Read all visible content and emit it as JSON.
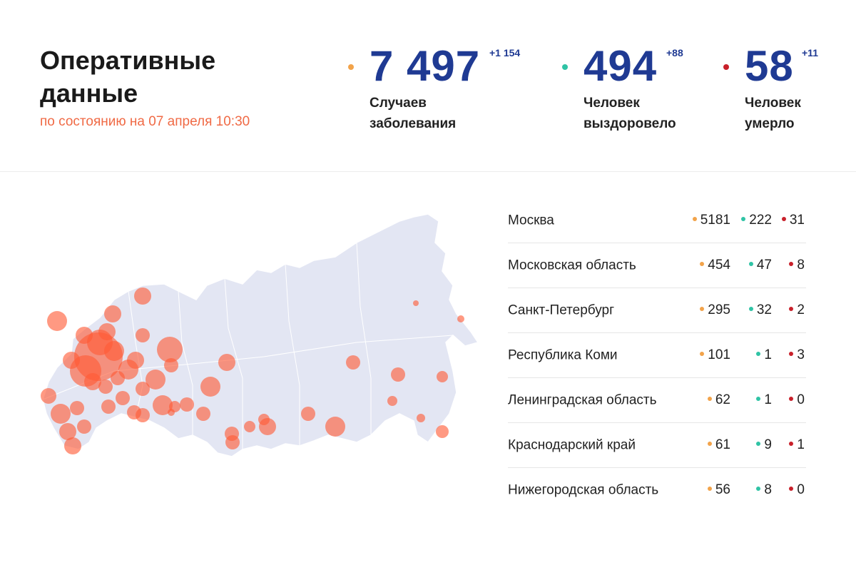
{
  "header": {
    "title": "Оперативные данные",
    "subtitle": "по состоянию на 07 апреля 10:30"
  },
  "stats": {
    "cases": {
      "value": "7 497",
      "delta": "+1 154",
      "label_line1": "Случаев",
      "label_line2": "заболевания",
      "color": "#f2a34a"
    },
    "recovered": {
      "value": "494",
      "delta": "+88",
      "label_line1": "Человек",
      "label_line2": "выздоровело",
      "color": "#2fc3a5"
    },
    "deaths": {
      "value": "58",
      "delta": "+11",
      "label_line1": "Человек",
      "label_line2": "умерло",
      "color": "#c8202a"
    }
  },
  "colors": {
    "accent": "#f06a45",
    "value_blue": "#1f3a93",
    "map_fill": "#e3e6f3",
    "bubble": "#ff5a36"
  },
  "regions": [
    {
      "name": "Москва",
      "cases": "5181",
      "recovered": "222",
      "deaths": "31"
    },
    {
      "name": "Московская область",
      "cases": "454",
      "recovered": "47",
      "deaths": "8"
    },
    {
      "name": "Санкт-Петербург",
      "cases": "295",
      "recovered": "32",
      "deaths": "2"
    },
    {
      "name": "Республика Коми",
      "cases": "101",
      "recovered": "1",
      "deaths": "3"
    },
    {
      "name": "Ленинградская область",
      "cases": "62",
      "recovered": "1",
      "deaths": "0"
    },
    {
      "name": "Краснодарский край",
      "cases": "61",
      "recovered": "9",
      "deaths": "1"
    },
    {
      "name": "Нижегородская область",
      "cases": "56",
      "recovered": "8",
      "deaths": "0"
    }
  ]
}
